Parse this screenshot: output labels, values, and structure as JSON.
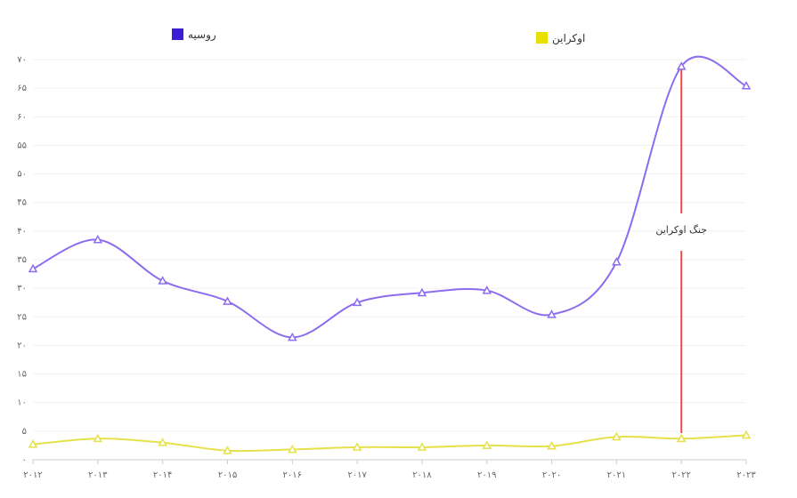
{
  "chart_data": {
    "type": "line",
    "x": [
      "۲۰۱۲",
      "۲۰۱۳",
      "۲۰۱۴",
      "۲۰۱۵",
      "۲۰۱۶",
      "۲۰۱۷",
      "۲۰۱۸",
      "۲۰۱۹",
      "۲۰۲۰",
      "۲۰۲۱",
      "۲۰۲۲",
      "۲۰۲۳"
    ],
    "series": [
      {
        "name": "روسیه",
        "color": "#8e6cf0",
        "legend_color": "#3b1fd6",
        "values": [
          33.4,
          38.5,
          31.3,
          27.7,
          21.4,
          27.5,
          29.2,
          29.6,
          25.4,
          34.6,
          68.8,
          65.4
        ]
      },
      {
        "name": "اوکراین",
        "color": "#e6e04a",
        "legend_color": "#e8e000",
        "values": [
          2.7,
          3.7,
          3.0,
          1.6,
          1.8,
          2.2,
          2.2,
          2.5,
          2.4,
          4.0,
          3.7,
          4.3
        ]
      }
    ],
    "y_ticks": [
      "۰",
      "۵",
      "۱۰",
      "۱۵",
      "۲۰",
      "۲۵",
      "۳۰",
      "۳۵",
      "۴۰",
      "۴۵",
      "۵۰",
      "۵۵",
      "۶۰",
      "۶۵",
      "۷۰"
    ],
    "ylim": [
      0,
      70
    ],
    "grid": true,
    "legend": "top",
    "annotation": {
      "x_index": 10,
      "label": "جنگ اوکراین",
      "color": "#ef4c4c"
    }
  }
}
